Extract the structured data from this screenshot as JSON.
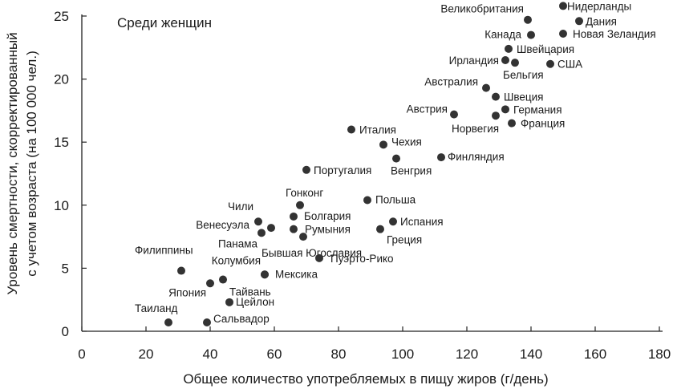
{
  "chart_data": {
    "type": "scatter",
    "title": "Среди женщин",
    "xlabel": "Общее количество употребляемых в пищу жиров (г/день)",
    "ylabel": [
      "Уровень смертности, скорректированный",
      "с учетом возраста (на 100 000 чел.)"
    ],
    "xlim": [
      0,
      180
    ],
    "ylim": [
      0,
      25
    ],
    "xticks": [
      0,
      20,
      40,
      60,
      80,
      100,
      120,
      140,
      160,
      180
    ],
    "yticks": [
      0,
      5,
      10,
      15,
      20,
      25
    ],
    "grid": false,
    "marker_color": "#333333",
    "points": [
      {
        "label": "Нидерланды",
        "x": 150,
        "y": 25.8
      },
      {
        "label": "Великобритания",
        "x": 139,
        "y": 24.7
      },
      {
        "label": "Дания",
        "x": 155,
        "y": 24.6
      },
      {
        "label": "Канада",
        "x": 140,
        "y": 23.5
      },
      {
        "label": "Новая Зеландия",
        "x": 150,
        "y": 23.6
      },
      {
        "label": "Швейцария",
        "x": 133,
        "y": 22.4
      },
      {
        "label": "Ирландия",
        "x": 132,
        "y": 21.5
      },
      {
        "label": "Бельгия",
        "x": 135,
        "y": 21.3
      },
      {
        "label": "США",
        "x": 146,
        "y": 21.2
      },
      {
        "label": "Австралия",
        "x": 126,
        "y": 19.3
      },
      {
        "label": "Швеция",
        "x": 129,
        "y": 18.6
      },
      {
        "label": "Германия",
        "x": 132,
        "y": 17.6
      },
      {
        "label": "Австрия",
        "x": 116,
        "y": 17.2
      },
      {
        "label": "Норвегия",
        "x": 129,
        "y": 17.1
      },
      {
        "label": "Франция",
        "x": 134,
        "y": 16.5
      },
      {
        "label": "Италия",
        "x": 84,
        "y": 16.0
      },
      {
        "label": "Чехия",
        "x": 94,
        "y": 14.8
      },
      {
        "label": "Финляндия",
        "x": 112,
        "y": 13.8
      },
      {
        "label": "Венгрия",
        "x": 98,
        "y": 13.7
      },
      {
        "label": "Португалия",
        "x": 70,
        "y": 12.8
      },
      {
        "label": "Польша",
        "x": 89,
        "y": 10.4
      },
      {
        "label": "Гонконг",
        "x": 68,
        "y": 10.0
      },
      {
        "label": "Чили",
        "x": 55,
        "y": 8.7
      },
      {
        "label": "Болгария",
        "x": 66,
        "y": 9.1
      },
      {
        "label": "Испания",
        "x": 97,
        "y": 8.7
      },
      {
        "label": "Венесуэла",
        "x": 59,
        "y": 8.2
      },
      {
        "label": "Румыния",
        "x": 66,
        "y": 8.1
      },
      {
        "label": "Греция",
        "x": 93,
        "y": 8.1
      },
      {
        "label": "Панама",
        "x": 56,
        "y": 7.8
      },
      {
        "label": "Бывшая Югославия",
        "x": 69,
        "y": 7.5
      },
      {
        "label": "Пуэрто-Рико",
        "x": 74,
        "y": 5.8
      },
      {
        "label": "Филиппины",
        "x": 31,
        "y": 4.8
      },
      {
        "label": "Колумбия",
        "x": 57,
        "y": 4.5
      },
      {
        "label": "Мексика",
        "x": 57,
        "y": 4.5
      },
      {
        "label": "Тайвань",
        "x": 44,
        "y": 4.1
      },
      {
        "label": "Япония",
        "x": 40,
        "y": 3.8
      },
      {
        "label": "Цейлон",
        "x": 46,
        "y": 2.3
      },
      {
        "label": "Таиланд",
        "x": 27,
        "y": 0.7
      },
      {
        "label": "Сальвадор",
        "x": 39,
        "y": 0.7
      }
    ]
  }
}
